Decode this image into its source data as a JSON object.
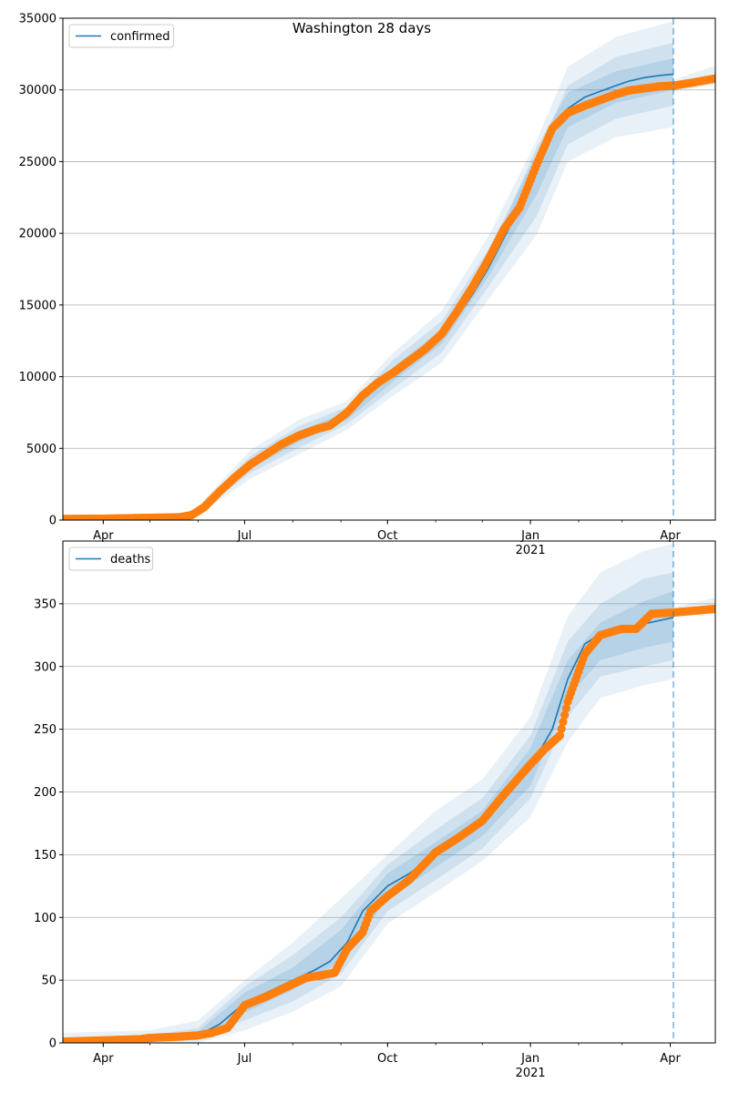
{
  "figure": {
    "title": "Washington 28 days"
  },
  "colors": {
    "model_line": "#1f77b4",
    "observed": "#ff7f0e",
    "band": "#1f77b4",
    "grid": "#b0b0b0",
    "axis": "#000000"
  },
  "chart_data": [
    {
      "type": "line",
      "title": "Washington 28 days",
      "legend": [
        "confirmed"
      ],
      "legend_position": "top-left",
      "grid": "horizontal",
      "xlim": [
        "2020-03-06",
        "2021-04-30"
      ],
      "ylim": [
        0,
        35000
      ],
      "yticks": [
        0,
        5000,
        10000,
        15000,
        20000,
        25000,
        30000,
        35000
      ],
      "xticks": [
        {
          "date": "2020-04-01",
          "label": "Apr",
          "sub": ""
        },
        {
          "date": "2020-07-01",
          "label": "Jul",
          "sub": ""
        },
        {
          "date": "2020-10-01",
          "label": "Oct",
          "sub": ""
        },
        {
          "date": "2021-01-01",
          "label": "Jan",
          "sub": "2021"
        },
        {
          "date": "2021-04-01",
          "label": "Apr",
          "sub": ""
        }
      ],
      "forecast_date": "2021-04-03",
      "series": [
        {
          "name": "confirmed",
          "kind": "model",
          "x": [
            "2020-03-06",
            "2020-05-01",
            "2020-05-28",
            "2020-06-05",
            "2020-06-15",
            "2020-06-25",
            "2020-07-05",
            "2020-07-15",
            "2020-07-25",
            "2020-08-05",
            "2020-08-15",
            "2020-08-25",
            "2020-09-05",
            "2020-09-15",
            "2020-09-25",
            "2020-10-05",
            "2020-10-15",
            "2020-10-25",
            "2020-11-05",
            "2020-11-15",
            "2020-11-25",
            "2020-12-05",
            "2020-12-15",
            "2020-12-25",
            "2021-01-05",
            "2021-01-15",
            "2021-01-25",
            "2021-02-05",
            "2021-02-15",
            "2021-02-25",
            "2021-03-05",
            "2021-03-15",
            "2021-03-25",
            "2021-04-03"
          ],
          "y": [
            100,
            150,
            350,
            900,
            2000,
            3000,
            3900,
            4600,
            5300,
            5800,
            6100,
            6500,
            7300,
            8500,
            9400,
            10200,
            11000,
            11900,
            12800,
            14200,
            15800,
            17600,
            19700,
            21800,
            24500,
            27300,
            28700,
            29500,
            29900,
            30300,
            30600,
            30850,
            31000,
            31100
          ]
        },
        {
          "name": "confirmed observed",
          "kind": "observed",
          "x": [
            "2020-03-06",
            "2020-04-01",
            "2020-04-25",
            "2020-05-20",
            "2020-05-28",
            "2020-06-05",
            "2020-06-15",
            "2020-06-25",
            "2020-07-05",
            "2020-07-15",
            "2020-07-25",
            "2020-08-05",
            "2020-08-15",
            "2020-08-25",
            "2020-09-05",
            "2020-09-15",
            "2020-09-25",
            "2020-10-05",
            "2020-10-15",
            "2020-10-25",
            "2020-11-05",
            "2020-11-15",
            "2020-11-25",
            "2020-12-05",
            "2020-12-15",
            "2020-12-25",
            "2021-01-05",
            "2021-01-15",
            "2021-01-25",
            "2021-02-05",
            "2021-02-15",
            "2021-02-25",
            "2021-03-05",
            "2021-03-15",
            "2021-03-25",
            "2021-04-03",
            "2021-04-15",
            "2021-04-30"
          ],
          "y": [
            80,
            100,
            150,
            200,
            350,
            900,
            2000,
            3000,
            3900,
            4600,
            5300,
            5900,
            6300,
            6600,
            7500,
            8700,
            9600,
            10300,
            11100,
            11900,
            13000,
            14600,
            16300,
            18200,
            20300,
            21800,
            24800,
            27300,
            28400,
            28900,
            29300,
            29700,
            29950,
            30100,
            30250,
            30300,
            30500,
            30800
          ]
        }
      ],
      "bands": [
        {
          "level": "outer",
          "x": [
            "2020-03-06",
            "2020-05-28",
            "2020-06-15",
            "2020-07-05",
            "2020-08-05",
            "2020-09-05",
            "2020-10-05",
            "2020-11-05",
            "2020-12-05",
            "2021-01-05",
            "2021-01-25",
            "2021-02-25",
            "2021-04-03"
          ],
          "low": [
            0,
            0,
            1400,
            2900,
            4600,
            6300,
            8700,
            11000,
            15400,
            19900,
            25000,
            26700,
            27400
          ],
          "high": [
            100,
            500,
            2600,
            4900,
            7000,
            8300,
            11700,
            14600,
            19800,
            26500,
            31600,
            33700,
            34800
          ]
        },
        {
          "level": "middle",
          "x": [
            "2020-03-06",
            "2020-05-28",
            "2020-06-15",
            "2020-07-05",
            "2020-08-05",
            "2020-09-05",
            "2020-10-05",
            "2020-11-05",
            "2020-12-05",
            "2021-01-05",
            "2021-01-25",
            "2021-02-25",
            "2021-04-03"
          ],
          "low": [
            20,
            100,
            1650,
            3300,
            5050,
            6700,
            9200,
            11700,
            16300,
            21200,
            26200,
            28000,
            28900
          ],
          "high": [
            100,
            450,
            2350,
            4500,
            6550,
            7900,
            11200,
            13900,
            18900,
            25500,
            30300,
            32300,
            33300
          ]
        },
        {
          "level": "inner",
          "x": [
            "2020-03-06",
            "2020-05-28",
            "2020-06-15",
            "2020-07-05",
            "2020-08-05",
            "2020-09-05",
            "2020-10-05",
            "2020-11-05",
            "2020-12-05",
            "2021-01-05",
            "2021-01-25",
            "2021-02-25",
            "2021-04-03"
          ],
          "low": [
            50,
            200,
            1850,
            3600,
            5450,
            7000,
            9700,
            12300,
            17000,
            22700,
            27400,
            29100,
            30000
          ],
          "high": [
            100,
            400,
            2150,
            4200,
            6150,
            7600,
            10700,
            13300,
            18200,
            26000,
            29800,
            31300,
            32200
          ]
        },
        {
          "level": "observed-spread",
          "x": [
            "2021-04-03",
            "2021-04-30"
          ],
          "low": [
            29900,
            30400
          ],
          "high": [
            30700,
            31700
          ]
        }
      ]
    },
    {
      "type": "line",
      "title": "",
      "legend": [
        "deaths"
      ],
      "legend_position": "top-left",
      "grid": "horizontal",
      "xlim": [
        "2020-03-06",
        "2021-04-30"
      ],
      "ylim": [
        0,
        400
      ],
      "yticks": [
        0,
        50,
        100,
        150,
        200,
        250,
        300,
        350
      ],
      "xticks": [
        {
          "date": "2020-04-01",
          "label": "Apr",
          "sub": ""
        },
        {
          "date": "2020-07-01",
          "label": "Jul",
          "sub": ""
        },
        {
          "date": "2020-10-01",
          "label": "Oct",
          "sub": ""
        },
        {
          "date": "2021-01-01",
          "label": "Jan",
          "sub": "2021"
        },
        {
          "date": "2021-04-01",
          "label": "Apr",
          "sub": ""
        }
      ],
      "forecast_date": "2021-04-03",
      "series": [
        {
          "name": "deaths",
          "kind": "model",
          "x": [
            "2020-03-06",
            "2020-05-01",
            "2020-06-01",
            "2020-06-15",
            "2020-07-01",
            "2020-07-15",
            "2020-08-01",
            "2020-08-15",
            "2020-08-25",
            "2020-09-05",
            "2020-09-15",
            "2020-10-01",
            "2020-10-15",
            "2020-11-01",
            "2020-11-15",
            "2020-12-01",
            "2020-12-15",
            "2021-01-01",
            "2021-01-15",
            "2021-01-25",
            "2021-02-05",
            "2021-02-15",
            "2021-03-01",
            "2021-03-15",
            "2021-04-03"
          ],
          "y": [
            1,
            3,
            6,
            15,
            32,
            40,
            50,
            58,
            65,
            80,
            105,
            125,
            135,
            150,
            162,
            175,
            195,
            220,
            250,
            290,
            318,
            326,
            330,
            334,
            339
          ]
        },
        {
          "name": "deaths observed",
          "kind": "observed",
          "x": [
            "2020-03-06",
            "2020-04-25",
            "2020-05-01",
            "2020-05-20",
            "2020-06-01",
            "2020-06-10",
            "2020-06-20",
            "2020-07-01",
            "2020-07-15",
            "2020-08-01",
            "2020-08-10",
            "2020-08-20",
            "2020-08-28",
            "2020-09-05",
            "2020-09-15",
            "2020-09-20",
            "2020-10-01",
            "2020-10-15",
            "2020-11-01",
            "2020-11-15",
            "2020-12-01",
            "2020-12-15",
            "2021-01-01",
            "2021-01-10",
            "2021-01-20",
            "2021-01-25",
            "2021-02-05",
            "2021-02-15",
            "2021-03-01",
            "2021-03-10",
            "2021-03-20",
            "2021-04-03",
            "2021-04-30"
          ],
          "y": [
            1,
            3,
            4,
            5,
            6,
            8,
            12,
            30,
            37,
            47,
            52,
            54,
            56,
            75,
            88,
            105,
            117,
            130,
            152,
            163,
            177,
            198,
            222,
            234,
            245,
            272,
            310,
            325,
            330,
            330,
            342,
            343,
            346
          ]
        }
      ],
      "bands": [
        {
          "level": "outer",
          "x": [
            "2020-03-06",
            "2020-05-01",
            "2020-06-01",
            "2020-07-01",
            "2020-08-01",
            "2020-09-01",
            "2020-10-01",
            "2020-11-01",
            "2020-12-01",
            "2021-01-01",
            "2021-01-25",
            "2021-02-15",
            "2021-03-15",
            "2021-04-03"
          ],
          "low": [
            0,
            0,
            0,
            10,
            25,
            45,
            95,
            120,
            145,
            180,
            240,
            275,
            285,
            290
          ],
          "high": [
            8,
            10,
            18,
            50,
            80,
            115,
            150,
            185,
            210,
            260,
            340,
            375,
            392,
            398
          ]
        },
        {
          "level": "middle",
          "x": [
            "2020-03-06",
            "2020-05-01",
            "2020-06-01",
            "2020-07-01",
            "2020-08-01",
            "2020-09-01",
            "2020-10-01",
            "2020-11-01",
            "2020-12-01",
            "2021-01-01",
            "2021-01-25",
            "2021-02-15",
            "2021-03-15",
            "2021-04-03"
          ],
          "low": [
            0,
            1,
            2,
            18,
            33,
            55,
            105,
            130,
            155,
            195,
            260,
            292,
            300,
            305
          ],
          "high": [
            4,
            6,
            12,
            45,
            70,
            100,
            142,
            170,
            195,
            245,
            320,
            350,
            370,
            375
          ]
        },
        {
          "level": "inner",
          "x": [
            "2020-03-06",
            "2020-05-01",
            "2020-06-01",
            "2020-07-01",
            "2020-08-01",
            "2020-09-01",
            "2020-10-01",
            "2020-11-01",
            "2020-12-01",
            "2021-01-01",
            "2021-01-25",
            "2021-02-15",
            "2021-03-15",
            "2021-04-03"
          ],
          "low": [
            0,
            2,
            4,
            24,
            42,
            65,
            115,
            140,
            165,
            205,
            275,
            305,
            315,
            320
          ],
          "high": [
            2,
            4,
            9,
            40,
            60,
            90,
            135,
            160,
            185,
            235,
            305,
            335,
            352,
            360
          ]
        },
        {
          "level": "observed-spread",
          "x": [
            "2021-04-03",
            "2021-04-30"
          ],
          "low": [
            340,
            341
          ],
          "high": [
            347,
            355
          ]
        }
      ]
    }
  ]
}
